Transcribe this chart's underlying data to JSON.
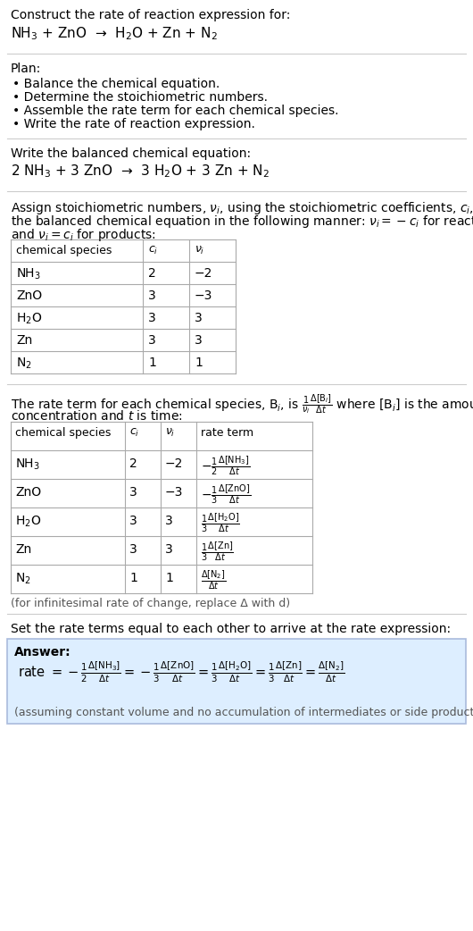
{
  "bg_color": "#ffffff",
  "text_color": "#000000",
  "table_line_color": "#aaaaaa",
  "answer_box_color": "#ddeeff",
  "answer_box_edge": "#aabbdd",
  "section_line_color": "#cccccc",
  "title_text": "Construct the rate of reaction expression for:",
  "unbalanced_eq": "NH$_3$ + ZnO  →  H$_2$O + Zn + N$_2$",
  "plan_title": "Plan:",
  "plan_steps": [
    "• Balance the chemical equation.",
    "• Determine the stoichiometric numbers.",
    "• Assemble the rate term for each chemical species.",
    "• Write the rate of reaction expression."
  ],
  "balanced_label": "Write the balanced chemical equation:",
  "balanced_eq": "2 NH$_3$ + 3 ZnO  →  3 H$_2$O + 3 Zn + N$_2$",
  "stoich_intro_line1": "Assign stoichiometric numbers, $\\nu_i$, using the stoichiometric coefficients, $c_i$, from",
  "stoich_intro_line2": "the balanced chemical equation in the following manner: $\\nu_i = -c_i$ for reactants",
  "stoich_intro_line3": "and $\\nu_i = c_i$ for products:",
  "table1_headers": [
    "chemical species",
    "$c_i$",
    "$\\nu_i$"
  ],
  "table1_rows": [
    [
      "NH$_3$",
      "2",
      "−2"
    ],
    [
      "ZnO",
      "3",
      "−3"
    ],
    [
      "H$_2$O",
      "3",
      "3"
    ],
    [
      "Zn",
      "3",
      "3"
    ],
    [
      "N$_2$",
      "1",
      "1"
    ]
  ],
  "rate_intro_line1": "The rate term for each chemical species, B$_i$, is $\\frac{1}{\\nu_i}\\frac{\\Delta[\\mathrm{B}_i]}{\\Delta t}$ where [B$_i$] is the amount",
  "rate_intro_line2": "concentration and $t$ is time:",
  "table2_headers": [
    "chemical species",
    "$c_i$",
    "$\\nu_i$",
    "rate term"
  ],
  "table2_row0_col0": "NH$_3$",
  "table2_row0_col1": "2",
  "table2_row0_col2": "−2",
  "table2_row0_col3_num": "$-\\frac{1}{2}\\frac{\\Delta[\\mathrm{NH_3}]}{\\Delta t}$",
  "table2_row1_col0": "ZnO",
  "table2_row1_col1": "3",
  "table2_row1_col2": "−3",
  "table2_row1_col3_num": "$-\\frac{1}{3}\\frac{\\Delta[\\mathrm{ZnO}]}{\\Delta t}$",
  "table2_row2_col0": "H$_2$O",
  "table2_row2_col1": "3",
  "table2_row2_col2": "3",
  "table2_row2_col3_num": "$\\frac{1}{3}\\frac{\\Delta[\\mathrm{H_2O}]}{\\Delta t}$",
  "table2_row3_col0": "Zn",
  "table2_row3_col1": "3",
  "table2_row3_col2": "3",
  "table2_row3_col3_num": "$\\frac{1}{3}\\frac{\\Delta[\\mathrm{Zn}]}{\\Delta t}$",
  "table2_row4_col0": "N$_2$",
  "table2_row4_col1": "1",
  "table2_row4_col2": "1",
  "table2_row4_col3_num": "$\\frac{\\Delta[\\mathrm{N_2}]}{\\Delta t}$",
  "infinitesimal_note": "(for infinitesimal rate of change, replace Δ with d)",
  "set_equal_text": "Set the rate terms equal to each other to arrive at the rate expression:",
  "answer_label": "Answer:",
  "answer_eq": "rate $= -\\frac{1}{2}\\frac{\\Delta[\\mathrm{NH_3}]}{\\Delta t} = -\\frac{1}{3}\\frac{\\Delta[\\mathrm{ZnO}]}{\\Delta t} = \\frac{1}{3}\\frac{\\Delta[\\mathrm{H_2O}]}{\\Delta t} = \\frac{1}{3}\\frac{\\Delta[\\mathrm{Zn}]}{\\Delta t} = \\frac{\\Delta[\\mathrm{N_2}]}{\\Delta t}$",
  "assuming_note": "(assuming constant volume and no accumulation of intermediates or side products)"
}
